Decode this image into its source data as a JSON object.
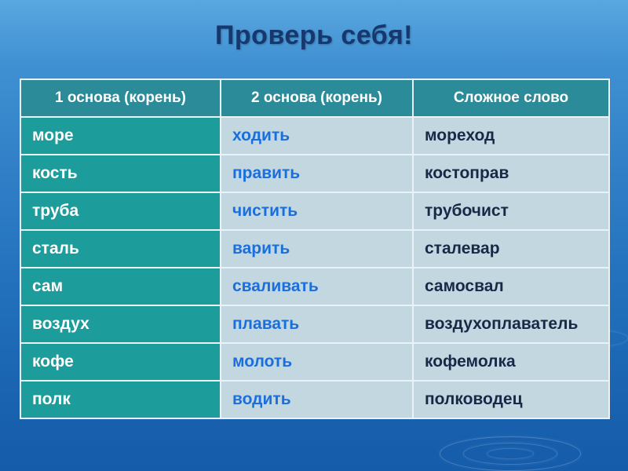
{
  "title": "Проверь себя!",
  "table": {
    "headers": [
      "1 основа (корень)",
      "2 основа (корень)",
      "Сложное слово"
    ],
    "rows": [
      [
        "море",
        "ходить",
        "мореход"
      ],
      [
        "кость",
        "править",
        "костоправ"
      ],
      [
        "труба",
        "чистить",
        "трубочист"
      ],
      [
        "сталь",
        "варить",
        "сталевар"
      ],
      [
        "сам",
        "сваливать",
        "самосвал"
      ],
      [
        "воздух",
        "плавать",
        "воздухоплаватель"
      ],
      [
        "кофе",
        "молоть",
        "кофемолка"
      ],
      [
        "полк",
        "водить",
        "полководец"
      ]
    ]
  }
}
